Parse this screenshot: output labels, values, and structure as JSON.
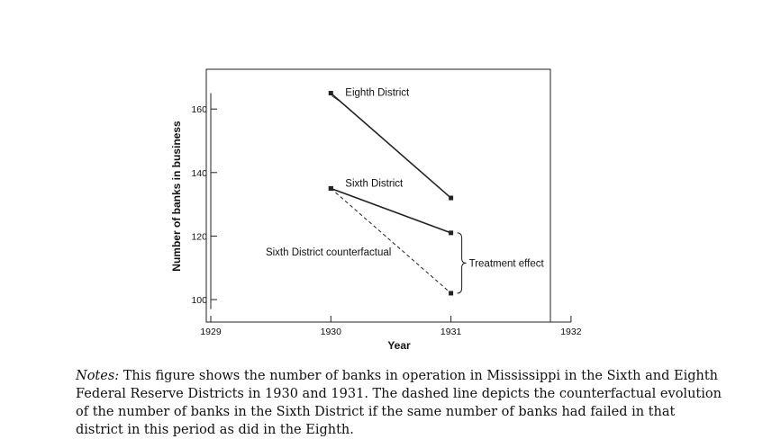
{
  "chart_data": {
    "type": "line",
    "xlabel": "Year",
    "ylabel": "Number of banks in business",
    "xlim": [
      1929,
      1932
    ],
    "ylim": [
      97,
      174
    ],
    "x_ticks": [
      1929,
      1930,
      1931,
      1932
    ],
    "y_ticks": [
      100,
      120,
      140,
      160
    ],
    "grid": false,
    "series": [
      {
        "name": "Eighth District",
        "style": "solid",
        "x": [
          1930,
          1931
        ],
        "y": [
          165,
          132
        ]
      },
      {
        "name": "Sixth District",
        "style": "solid",
        "x": [
          1930,
          1931
        ],
        "y": [
          135,
          121
        ]
      },
      {
        "name": "Sixth District counterfactual",
        "style": "dashed",
        "x": [
          1930,
          1931
        ],
        "y": [
          135,
          102
        ]
      }
    ],
    "annotations": [
      {
        "text": "Treatment effect",
        "brace_between": [
          121,
          102
        ],
        "at_x": 1931
      }
    ]
  },
  "notes": {
    "label": "Notes:",
    "text": "This figure shows the number of banks in operation in Mississippi in the Sixth and Eighth Federal Reserve Districts in 1930 and 1931. The dashed line depicts the counterfactual evolution of the number of banks in the Sixth District if the same number of banks had failed in that district in this period as did in the Eighth."
  }
}
